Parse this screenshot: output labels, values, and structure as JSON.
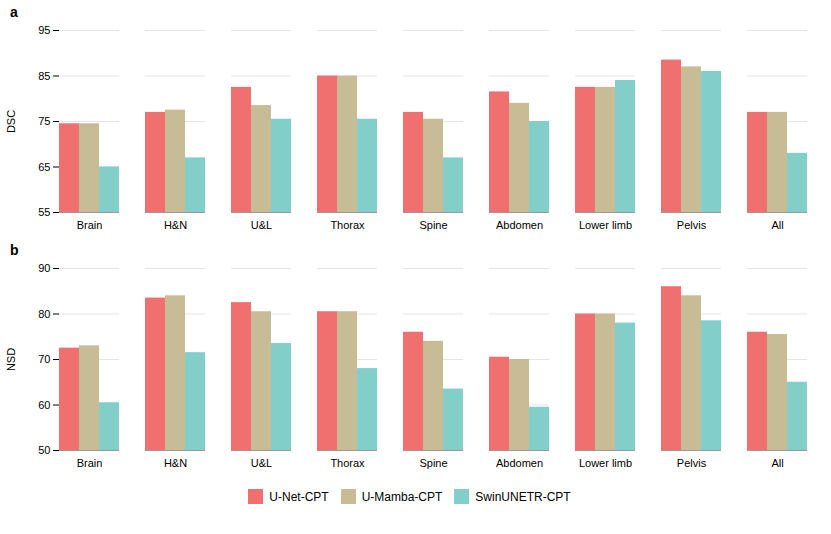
{
  "chart_data": [
    {
      "type": "bar",
      "title": "a",
      "ylabel": "DSC",
      "categories": [
        "Brain",
        "H&N",
        "U&L",
        "Thorax",
        "Spine",
        "Abdomen",
        "Lower limb",
        "Pelvis",
        "All"
      ],
      "series": [
        {
          "name": "U-Net-CPT",
          "color": "#F07070",
          "values": [
            74.5,
            77.0,
            82.5,
            85.0,
            77.0,
            81.5,
            82.5,
            88.5,
            77.0
          ]
        },
        {
          "name": "U-Mamba-CPT",
          "color": "#C8BC96",
          "values": [
            74.5,
            77.5,
            78.5,
            85.0,
            75.5,
            79.0,
            82.5,
            87.0,
            77.0
          ]
        },
        {
          "name": "SwinUNETR-CPT",
          "color": "#82CEC8",
          "values": [
            65.0,
            67.0,
            75.5,
            75.5,
            67.0,
            75.0,
            84.0,
            86.0,
            68.0
          ]
        }
      ],
      "ylim": [
        55,
        95
      ],
      "yticks": [
        55,
        65,
        75,
        85,
        95
      ],
      "grid": true
    },
    {
      "type": "bar",
      "title": "b",
      "ylabel": "NSD",
      "categories": [
        "Brain",
        "H&N",
        "U&L",
        "Thorax",
        "Spine",
        "Abdomen",
        "Lower limb",
        "Pelvis",
        "All"
      ],
      "series": [
        {
          "name": "U-Net-CPT",
          "color": "#F07070",
          "values": [
            72.5,
            83.5,
            82.5,
            80.5,
            76.0,
            70.5,
            80.0,
            86.0,
            76.0
          ]
        },
        {
          "name": "U-Mamba-CPT",
          "color": "#C8BC96",
          "values": [
            73.0,
            84.0,
            80.5,
            80.5,
            74.0,
            70.0,
            80.0,
            84.0,
            75.5
          ]
        },
        {
          "name": "SwinUNETR-CPT",
          "color": "#82CEC8",
          "values": [
            60.5,
            71.5,
            73.5,
            68.0,
            63.5,
            59.5,
            78.0,
            78.5,
            65.0
          ]
        }
      ],
      "ylim": [
        50,
        90
      ],
      "yticks": [
        50,
        60,
        70,
        80,
        90
      ],
      "grid": true,
      "legend": "bottom"
    }
  ]
}
